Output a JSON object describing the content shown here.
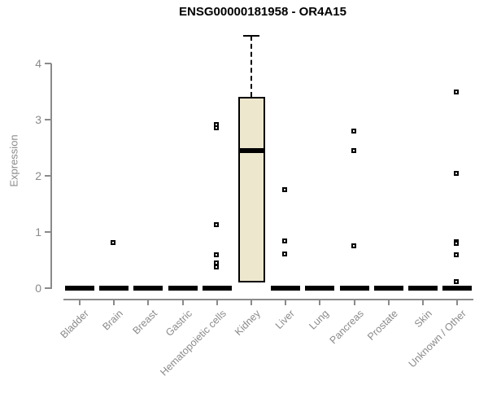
{
  "chart_data": {
    "type": "boxplot",
    "title": "ENSG00000181958 - OR4A15",
    "xlabel": "",
    "ylabel": "Expression",
    "yticks": [
      0,
      1,
      2,
      3,
      4
    ],
    "ylim": [
      0,
      4.6
    ],
    "grid": false,
    "legend": false,
    "categories": [
      "Bladder",
      "Brain",
      "Breast",
      "Gastric",
      "Hematopoietic cells",
      "Kidney",
      "Liver",
      "Lung",
      "Pancreas",
      "Prostate",
      "Skin",
      "Unknown / Other"
    ],
    "boxes": [
      {
        "category": "Bladder",
        "q1": 0,
        "median": 0,
        "q3": 0,
        "whisker_low": 0,
        "whisker_high": 0,
        "outliers": []
      },
      {
        "category": "Brain",
        "q1": 0,
        "median": 0,
        "q3": 0,
        "whisker_low": 0,
        "whisker_high": 0,
        "outliers": [
          0.81
        ]
      },
      {
        "category": "Breast",
        "q1": 0,
        "median": 0,
        "q3": 0,
        "whisker_low": 0,
        "whisker_high": 0,
        "outliers": []
      },
      {
        "category": "Gastric",
        "q1": 0,
        "median": 0,
        "q3": 0,
        "whisker_low": 0,
        "whisker_high": 0,
        "outliers": []
      },
      {
        "category": "Hematopoietic cells",
        "q1": 0,
        "median": 0,
        "q3": 0,
        "whisker_low": 0,
        "whisker_high": 0,
        "outliers": [
          2.91,
          2.86,
          1.13,
          0.6,
          0.45,
          0.37
        ]
      },
      {
        "category": "Kidney",
        "q1": 0.1,
        "median": 2.45,
        "q3": 3.4,
        "whisker_low": 0.1,
        "whisker_high": 4.5,
        "outliers": []
      },
      {
        "category": "Liver",
        "q1": 0,
        "median": 0,
        "q3": 0,
        "whisker_low": 0,
        "whisker_high": 0,
        "outliers": [
          1.75,
          0.84,
          0.61
        ]
      },
      {
        "category": "Lung",
        "q1": 0,
        "median": 0,
        "q3": 0,
        "whisker_low": 0,
        "whisker_high": 0,
        "outliers": []
      },
      {
        "category": "Pancreas",
        "q1": 0,
        "median": 0,
        "q3": 0,
        "whisker_low": 0,
        "whisker_high": 0,
        "outliers": [
          2.8,
          2.45,
          0.75
        ]
      },
      {
        "category": "Prostate",
        "q1": 0,
        "median": 0,
        "q3": 0,
        "whisker_low": 0,
        "whisker_high": 0,
        "outliers": []
      },
      {
        "category": "Skin",
        "q1": 0,
        "median": 0,
        "q3": 0,
        "whisker_low": 0,
        "whisker_high": 0,
        "outliers": []
      },
      {
        "category": "Unknown / Other",
        "q1": 0,
        "median": 0,
        "q3": 0,
        "whisker_low": 0,
        "whisker_high": 0,
        "outliers": [
          3.49,
          2.04,
          0.83,
          0.79,
          0.59,
          0.12
        ]
      }
    ],
    "colors": {
      "box_fill": "#ede7ce",
      "box_border": "#000000",
      "median": "#000000",
      "outlier": "#000000",
      "axis": "#8a8a8a",
      "tick_label": "#8a8a8a",
      "title": "#000000",
      "background": "#ffffff"
    }
  }
}
